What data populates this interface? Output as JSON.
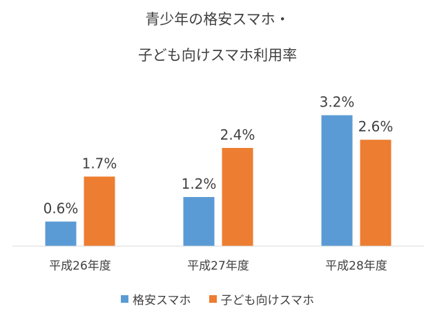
{
  "chart_data": {
    "type": "bar",
    "title": [
      "青少年の格安スマホ・",
      "子ども向けスマホ利用率"
    ],
    "categories": [
      "平成26年度",
      "平成27年度",
      "平成28年度"
    ],
    "series": [
      {
        "name": "格安スマホ",
        "values": [
          0.6,
          1.2,
          3.2
        ],
        "labels": [
          "0.6%",
          "1.2%",
          "3.2%"
        ],
        "color": "#5B9BD5"
      },
      {
        "name": "子ども向けスマホ",
        "values": [
          1.7,
          2.4,
          2.6
        ],
        "labels": [
          "1.7%",
          "2.4%",
          "2.6%"
        ],
        "color": "#ED7D31"
      }
    ],
    "ylim": [
      0,
      3.6
    ],
    "grid": false,
    "legend": "bottom"
  }
}
